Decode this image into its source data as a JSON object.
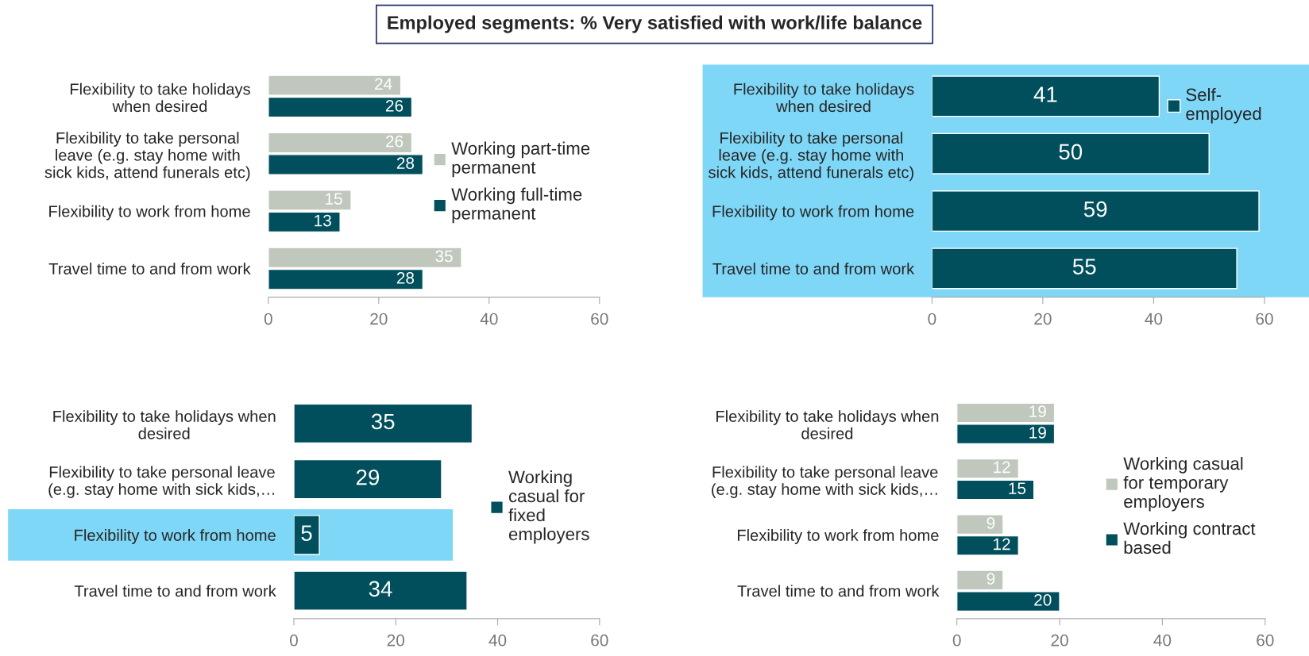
{
  "chart_data": [
    {
      "type": "bar",
      "orientation": "horizontal",
      "title": "Employed segments: % Very satisfied with work/life balance",
      "categories": [
        "Flexibility to take holidays\nwhen desired",
        "Flexibility to take personal\nleave (e.g. stay home with\nsick kids, attend funerals etc)",
        "Flexibility to work from home",
        "Travel time to and from work"
      ],
      "series": [
        {
          "name": "Working part-time\npermanent",
          "color": "#c0c7bd",
          "values": [
            24,
            26,
            15,
            35
          ]
        },
        {
          "name": "Working full-time\npermanent",
          "color": "#014f5c",
          "values": [
            26,
            28,
            13,
            28
          ]
        }
      ],
      "xlim": [
        0,
        60
      ],
      "xticks": [
        0,
        20,
        40,
        60
      ],
      "data_labels": true,
      "legend": "right",
      "grid": false
    },
    {
      "type": "bar",
      "orientation": "horizontal",
      "categories": [
        "Flexibility to take holidays\nwhen desired",
        "Flexibility to take personal\nleave (e.g. stay home with\nsick kids, attend funerals etc)",
        "Flexibility to work from home",
        "Travel time to and from work"
      ],
      "series": [
        {
          "name": "Self-\nemployed",
          "color": "#014f5c",
          "values": [
            41,
            50,
            59,
            55
          ]
        }
      ],
      "bands": [
        {
          "axis": "y",
          "from": "Flexibility to take holidays\nwhen desired",
          "to": "Travel time to and from work",
          "color": "#7fd7f7"
        }
      ],
      "xlim": [
        0,
        60
      ],
      "xticks": [
        0,
        20,
        40,
        60
      ],
      "data_labels": true,
      "legend": "top right",
      "grid": false
    },
    {
      "type": "bar",
      "orientation": "horizontal",
      "categories": [
        "Flexibility to take holidays when\ndesired",
        "Flexibility to take personal leave\n(e.g. stay home with sick kids,…",
        "Flexibility to work from home",
        "Travel time to and from work"
      ],
      "series": [
        {
          "name": "Working\ncasual for\nfixed\nemployers",
          "color": "#014f5c",
          "values": [
            35,
            29,
            5,
            34
          ]
        }
      ],
      "bands": [
        {
          "axis": "y",
          "from": "Flexibility to work from home",
          "to": "Flexibility to work from home",
          "color": "#7fd7f7"
        }
      ],
      "xlim": [
        0,
        60
      ],
      "xticks": [
        0,
        20,
        40,
        60
      ],
      "data_labels": true,
      "legend": "right",
      "grid": false
    },
    {
      "type": "bar",
      "orientation": "horizontal",
      "categories": [
        "Flexibility to take holidays when\ndesired",
        "Flexibility to take personal leave\n(e.g. stay home with sick kids,…",
        "Flexibility to work from home",
        "Travel time to and from work"
      ],
      "series": [
        {
          "name": "Working casual\nfor temporary\nemployers",
          "color": "#c0c7bd",
          "values": [
            19,
            12,
            9,
            9
          ]
        },
        {
          "name": "Working contract\nbased",
          "color": "#014f5c",
          "values": [
            19,
            15,
            12,
            20
          ]
        }
      ],
      "xlim": [
        0,
        60
      ],
      "xticks": [
        0,
        20,
        40,
        60
      ],
      "data_labels": true,
      "legend": "right",
      "grid": false
    }
  ]
}
